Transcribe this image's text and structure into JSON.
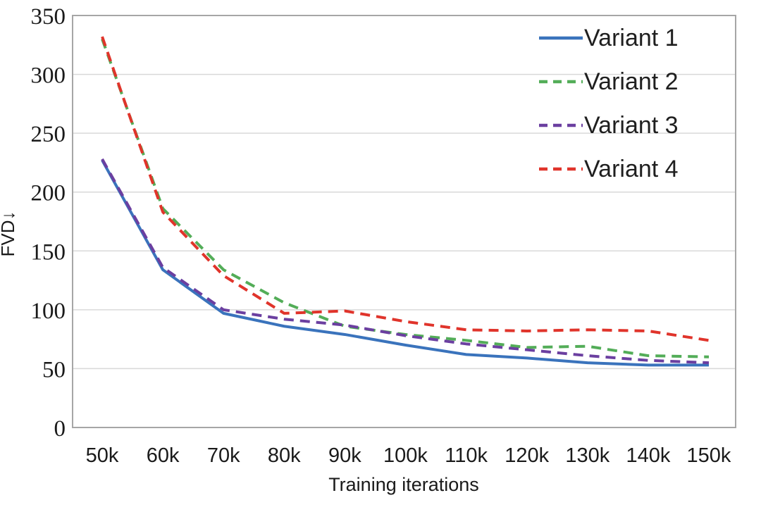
{
  "chart_data": {
    "type": "line",
    "title": "",
    "xlabel": "Training iterations",
    "ylabel": "FVD↓",
    "categories": [
      "50k",
      "60k",
      "70k",
      "80k",
      "90k",
      "100k",
      "110k",
      "120k",
      "130k",
      "140k",
      "150k"
    ],
    "x_values_k": [
      50,
      60,
      70,
      80,
      90,
      100,
      110,
      120,
      130,
      140,
      150
    ],
    "yticks": [
      0,
      50,
      100,
      150,
      200,
      250,
      300,
      350
    ],
    "ylim": [
      0,
      350
    ],
    "grid": "horizontal",
    "legend_position": "top-right inside plot, no border",
    "series": [
      {
        "name": "Variant 1",
        "color": "#3a73bc",
        "style": "solid",
        "values": [
          227,
          134,
          97,
          86,
          79,
          70,
          62,
          59,
          55,
          53,
          53
        ]
      },
      {
        "name": "Variant 2",
        "color": "#53ad58",
        "style": "dashed",
        "values": [
          330,
          186,
          134,
          106,
          86,
          79,
          74,
          68,
          69,
          61,
          60
        ]
      },
      {
        "name": "Variant 3",
        "color": "#6b3fa0",
        "style": "dashed",
        "values": [
          228,
          136,
          100,
          92,
          87,
          78,
          71,
          66,
          61,
          57,
          55
        ]
      },
      {
        "name": "Variant 4",
        "color": "#e0342b",
        "style": "dashed",
        "values": [
          332,
          183,
          129,
          97,
          99,
          90,
          83,
          82,
          83,
          82,
          74
        ]
      }
    ]
  },
  "style_colors": {
    "gridline": "#d9d9d9",
    "plot_border": "#a6a6a6",
    "tick_text": "#1a1a1a",
    "legend_text": "#1f1f1f"
  }
}
